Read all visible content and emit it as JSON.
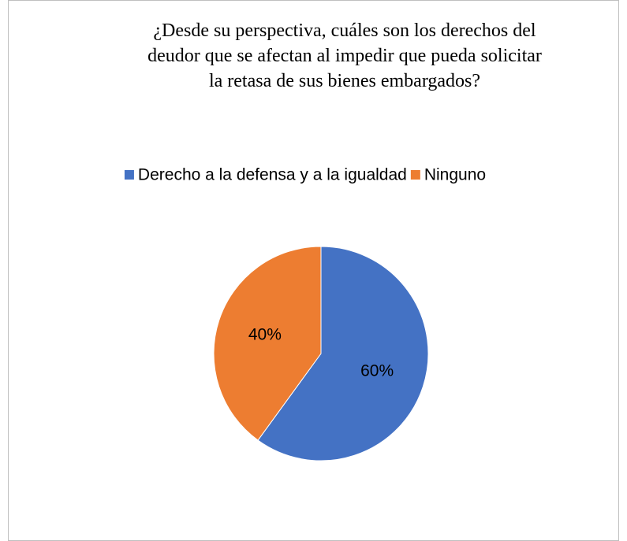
{
  "chart_data": {
    "type": "pie",
    "title": [
      "¿Desde su perspectiva, cuáles son los derechos del",
      "deudor que se afectan al impedir que pueda solicitar",
      "la retasa de sus bienes embargados?"
    ],
    "categories": [
      "Derecho a la defensa y a la igualdad",
      "Ninguno"
    ],
    "values": [
      60,
      40
    ],
    "value_labels": [
      "60%",
      "40%"
    ],
    "colors": [
      "#4472c4",
      "#ed7d31"
    ],
    "legend": "top"
  }
}
